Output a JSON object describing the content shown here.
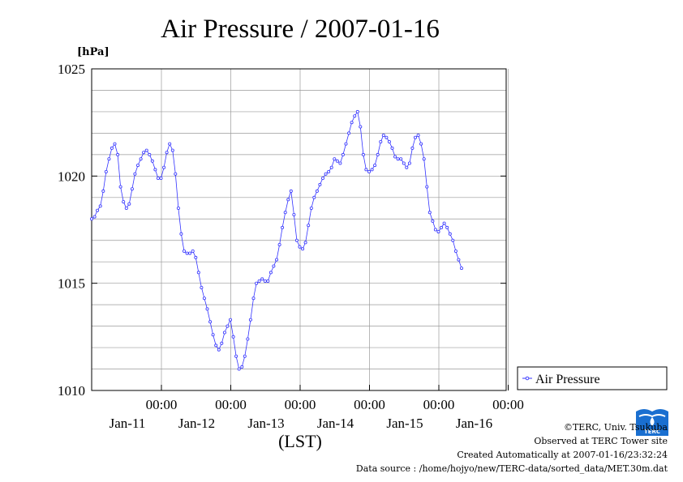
{
  "chart_data": {
    "type": "line",
    "title": "Air Pressure / 2007-01-16",
    "ylabel": "[hPa]",
    "xlabel": "(LST)",
    "ylim": [
      1010,
      1025
    ],
    "yticks": [
      "1010",
      "1015",
      "1020",
      "1025"
    ],
    "xlim_hours": [
      0,
      144
    ],
    "xticks": [
      {
        "time": "00:00",
        "date": "Jan-11"
      },
      {
        "time": "00:00",
        "date": "Jan-12"
      },
      {
        "time": "00:00",
        "date": "Jan-13"
      },
      {
        "time": "00:00",
        "date": "Jan-14"
      },
      {
        "time": "00:00",
        "date": "Jan-15"
      },
      {
        "time": "00:00",
        "date": "Jan-16"
      }
    ],
    "grid": true,
    "legend_position": "right",
    "series": [
      {
        "name": "Air Pressure",
        "color": "#3333ff",
        "points": [
          [
            0,
            1018.0
          ],
          [
            1,
            1018.1
          ],
          [
            2,
            1018.4
          ],
          [
            3,
            1018.6
          ],
          [
            4,
            1019.3
          ],
          [
            5,
            1020.2
          ],
          [
            6,
            1020.8
          ],
          [
            7,
            1021.3
          ],
          [
            8,
            1021.5
          ],
          [
            9,
            1021.0
          ],
          [
            10,
            1019.5
          ],
          [
            11,
            1018.8
          ],
          [
            12,
            1018.5
          ],
          [
            13,
            1018.7
          ],
          [
            14,
            1019.4
          ],
          [
            15,
            1020.1
          ],
          [
            16,
            1020.5
          ],
          [
            17,
            1020.8
          ],
          [
            18,
            1021.1
          ],
          [
            19,
            1021.2
          ],
          [
            20,
            1021.0
          ],
          [
            21,
            1020.7
          ],
          [
            22,
            1020.3
          ],
          [
            23,
            1019.9
          ],
          [
            24,
            1019.9
          ],
          [
            25,
            1020.4
          ],
          [
            26,
            1021.1
          ],
          [
            27,
            1021.5
          ],
          [
            28,
            1021.2
          ],
          [
            29,
            1020.1
          ],
          [
            30,
            1018.5
          ],
          [
            31,
            1017.3
          ],
          [
            32,
            1016.5
          ],
          [
            33,
            1016.4
          ],
          [
            34,
            1016.4
          ],
          [
            35,
            1016.5
          ],
          [
            36,
            1016.2
          ],
          [
            37,
            1015.5
          ],
          [
            38,
            1014.8
          ],
          [
            39,
            1014.3
          ],
          [
            40,
            1013.8
          ],
          [
            41,
            1013.2
          ],
          [
            42,
            1012.6
          ],
          [
            43,
            1012.1
          ],
          [
            44,
            1011.9
          ],
          [
            45,
            1012.2
          ],
          [
            46,
            1012.7
          ],
          [
            47,
            1013.0
          ],
          [
            48,
            1013.3
          ],
          [
            49,
            1012.5
          ],
          [
            50,
            1011.6
          ],
          [
            51,
            1011.0
          ],
          [
            52,
            1011.1
          ],
          [
            53,
            1011.6
          ],
          [
            54,
            1012.4
          ],
          [
            55,
            1013.3
          ],
          [
            56,
            1014.3
          ],
          [
            57,
            1015.0
          ],
          [
            58,
            1015.1
          ],
          [
            59,
            1015.2
          ],
          [
            60,
            1015.1
          ],
          [
            61,
            1015.1
          ],
          [
            62,
            1015.5
          ],
          [
            63,
            1015.8
          ],
          [
            64,
            1016.1
          ],
          [
            65,
            1016.8
          ],
          [
            66,
            1017.6
          ],
          [
            67,
            1018.3
          ],
          [
            68,
            1018.9
          ],
          [
            69,
            1019.3
          ],
          [
            70,
            1018.2
          ],
          [
            71,
            1017.0
          ],
          [
            72,
            1016.7
          ],
          [
            73,
            1016.6
          ],
          [
            74,
            1016.9
          ],
          [
            75,
            1017.7
          ],
          [
            76,
            1018.5
          ],
          [
            77,
            1019.0
          ],
          [
            78,
            1019.3
          ],
          [
            79,
            1019.6
          ],
          [
            80,
            1019.9
          ],
          [
            81,
            1020.1
          ],
          [
            82,
            1020.2
          ],
          [
            83,
            1020.4
          ],
          [
            84,
            1020.8
          ],
          [
            85,
            1020.7
          ],
          [
            86,
            1020.6
          ],
          [
            87,
            1021.0
          ],
          [
            88,
            1021.5
          ],
          [
            89,
            1022.0
          ],
          [
            90,
            1022.5
          ],
          [
            91,
            1022.8
          ],
          [
            92,
            1023.0
          ],
          [
            93,
            1022.3
          ],
          [
            94,
            1021.0
          ],
          [
            95,
            1020.3
          ],
          [
            96,
            1020.2
          ],
          [
            97,
            1020.3
          ],
          [
            98,
            1020.5
          ],
          [
            99,
            1021.0
          ],
          [
            100,
            1021.6
          ],
          [
            101,
            1021.9
          ],
          [
            102,
            1021.8
          ],
          [
            103,
            1021.6
          ],
          [
            104,
            1021.3
          ],
          [
            105,
            1020.9
          ],
          [
            106,
            1020.8
          ],
          [
            107,
            1020.8
          ],
          [
            108,
            1020.6
          ],
          [
            109,
            1020.4
          ],
          [
            110,
            1020.6
          ],
          [
            111,
            1021.3
          ],
          [
            112,
            1021.8
          ],
          [
            113,
            1021.9
          ],
          [
            114,
            1021.5
          ],
          [
            115,
            1020.8
          ],
          [
            116,
            1019.5
          ],
          [
            117,
            1018.3
          ],
          [
            118,
            1017.9
          ],
          [
            119,
            1017.5
          ],
          [
            120,
            1017.4
          ],
          [
            121,
            1017.6
          ],
          [
            122,
            1017.8
          ],
          [
            123,
            1017.6
          ],
          [
            124,
            1017.3
          ],
          [
            125,
            1017.0
          ],
          [
            126,
            1016.5
          ],
          [
            127,
            1016.1
          ],
          [
            128,
            1015.7
          ]
        ]
      }
    ]
  },
  "footer": {
    "copyright": "©TERC, Univ. Tsukuba",
    "observed": "Observed at TERC Tower site",
    "created": "Created Automatically at 2007-01-16/23:32:24",
    "source": "Data source : /home/hojyo/new/TERC-data/sorted_data/MET.30m.dat"
  },
  "logo_text": "TERC"
}
